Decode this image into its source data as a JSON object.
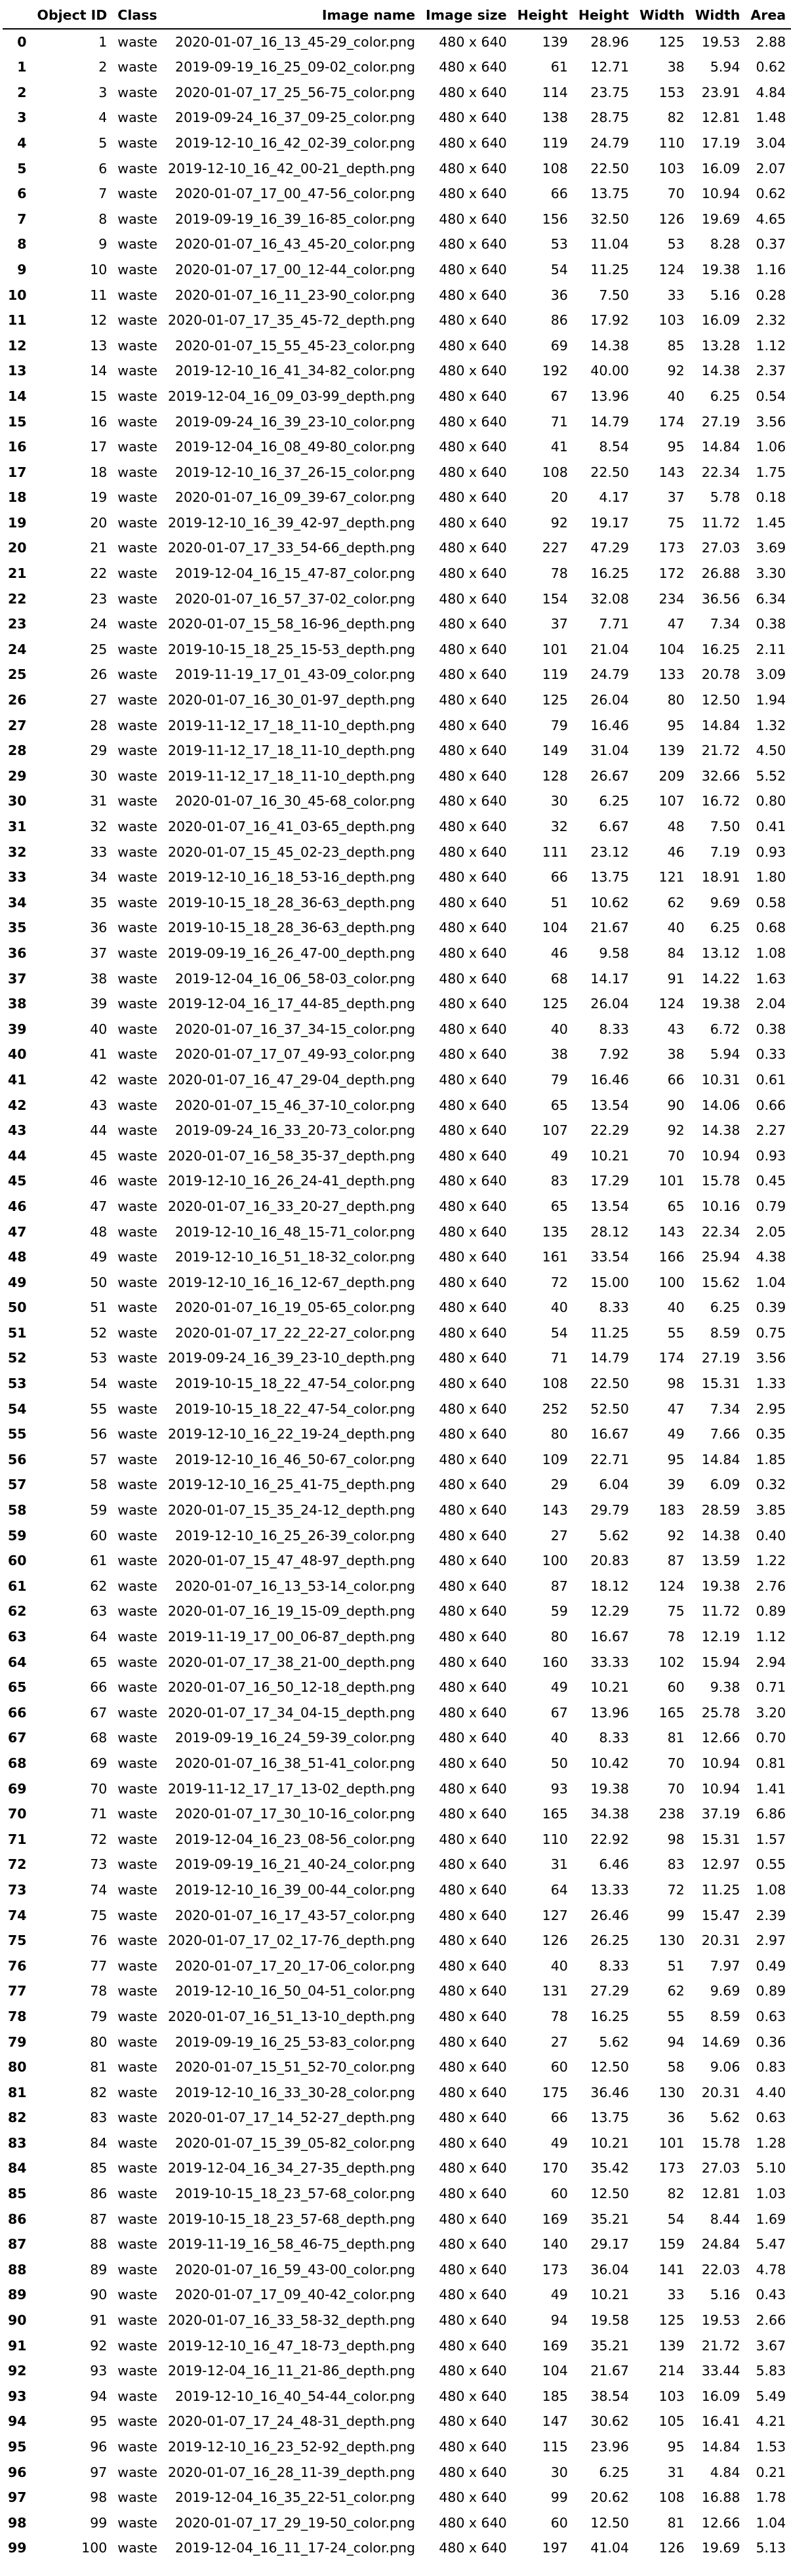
{
  "columns": [
    "",
    "Object ID",
    "Class",
    "Image name",
    "Image size",
    "Height",
    "Height",
    "Width",
    "Width",
    "Area"
  ],
  "rows": [
    [
      "0",
      "1",
      "waste",
      "2020-01-07_16_13_45-29_color.png",
      "480 x 640",
      "139",
      "28.96",
      "125",
      "19.53",
      "2.88"
    ],
    [
      "1",
      "2",
      "waste",
      "2019-09-19_16_25_09-02_color.png",
      "480 x 640",
      "61",
      "12.71",
      "38",
      "5.94",
      "0.62"
    ],
    [
      "2",
      "3",
      "waste",
      "2020-01-07_17_25_56-75_color.png",
      "480 x 640",
      "114",
      "23.75",
      "153",
      "23.91",
      "4.84"
    ],
    [
      "3",
      "4",
      "waste",
      "2019-09-24_16_37_09-25_color.png",
      "480 x 640",
      "138",
      "28.75",
      "82",
      "12.81",
      "1.48"
    ],
    [
      "4",
      "5",
      "waste",
      "2019-12-10_16_42_02-39_color.png",
      "480 x 640",
      "119",
      "24.79",
      "110",
      "17.19",
      "3.04"
    ],
    [
      "5",
      "6",
      "waste",
      "2019-12-10_16_42_00-21_depth.png",
      "480 x 640",
      "108",
      "22.50",
      "103",
      "16.09",
      "2.07"
    ],
    [
      "6",
      "7",
      "waste",
      "2020-01-07_17_00_47-56_color.png",
      "480 x 640",
      "66",
      "13.75",
      "70",
      "10.94",
      "0.62"
    ],
    [
      "7",
      "8",
      "waste",
      "2019-09-19_16_39_16-85_color.png",
      "480 x 640",
      "156",
      "32.50",
      "126",
      "19.69",
      "4.65"
    ],
    [
      "8",
      "9",
      "waste",
      "2020-01-07_16_43_45-20_color.png",
      "480 x 640",
      "53",
      "11.04",
      "53",
      "8.28",
      "0.37"
    ],
    [
      "9",
      "10",
      "waste",
      "2020-01-07_17_00_12-44_color.png",
      "480 x 640",
      "54",
      "11.25",
      "124",
      "19.38",
      "1.16"
    ],
    [
      "10",
      "11",
      "waste",
      "2020-01-07_16_11_23-90_color.png",
      "480 x 640",
      "36",
      "7.50",
      "33",
      "5.16",
      "0.28"
    ],
    [
      "11",
      "12",
      "waste",
      "2020-01-07_17_35_45-72_depth.png",
      "480 x 640",
      "86",
      "17.92",
      "103",
      "16.09",
      "2.32"
    ],
    [
      "12",
      "13",
      "waste",
      "2020-01-07_15_55_45-23_color.png",
      "480 x 640",
      "69",
      "14.38",
      "85",
      "13.28",
      "1.12"
    ],
    [
      "13",
      "14",
      "waste",
      "2019-12-10_16_41_34-82_color.png",
      "480 x 640",
      "192",
      "40.00",
      "92",
      "14.38",
      "2.37"
    ],
    [
      "14",
      "15",
      "waste",
      "2019-12-04_16_09_03-99_depth.png",
      "480 x 640",
      "67",
      "13.96",
      "40",
      "6.25",
      "0.54"
    ],
    [
      "15",
      "16",
      "waste",
      "2019-09-24_16_39_23-10_color.png",
      "480 x 640",
      "71",
      "14.79",
      "174",
      "27.19",
      "3.56"
    ],
    [
      "16",
      "17",
      "waste",
      "2019-12-04_16_08_49-80_color.png",
      "480 x 640",
      "41",
      "8.54",
      "95",
      "14.84",
      "1.06"
    ],
    [
      "17",
      "18",
      "waste",
      "2019-12-10_16_37_26-15_color.png",
      "480 x 640",
      "108",
      "22.50",
      "143",
      "22.34",
      "1.75"
    ],
    [
      "18",
      "19",
      "waste",
      "2020-01-07_16_09_39-67_color.png",
      "480 x 640",
      "20",
      "4.17",
      "37",
      "5.78",
      "0.18"
    ],
    [
      "19",
      "20",
      "waste",
      "2019-12-10_16_39_42-97_depth.png",
      "480 x 640",
      "92",
      "19.17",
      "75",
      "11.72",
      "1.45"
    ],
    [
      "20",
      "21",
      "waste",
      "2020-01-07_17_33_54-66_depth.png",
      "480 x 640",
      "227",
      "47.29",
      "173",
      "27.03",
      "3.69"
    ],
    [
      "21",
      "22",
      "waste",
      "2019-12-04_16_15_47-87_color.png",
      "480 x 640",
      "78",
      "16.25",
      "172",
      "26.88",
      "3.30"
    ],
    [
      "22",
      "23",
      "waste",
      "2020-01-07_16_57_37-02_color.png",
      "480 x 640",
      "154",
      "32.08",
      "234",
      "36.56",
      "6.34"
    ],
    [
      "23",
      "24",
      "waste",
      "2020-01-07_15_58_16-96_depth.png",
      "480 x 640",
      "37",
      "7.71",
      "47",
      "7.34",
      "0.38"
    ],
    [
      "24",
      "25",
      "waste",
      "2019-10-15_18_25_15-53_depth.png",
      "480 x 640",
      "101",
      "21.04",
      "104",
      "16.25",
      "2.11"
    ],
    [
      "25",
      "26",
      "waste",
      "2019-11-19_17_01_43-09_color.png",
      "480 x 640",
      "119",
      "24.79",
      "133",
      "20.78",
      "3.09"
    ],
    [
      "26",
      "27",
      "waste",
      "2020-01-07_16_30_01-97_depth.png",
      "480 x 640",
      "125",
      "26.04",
      "80",
      "12.50",
      "1.94"
    ],
    [
      "27",
      "28",
      "waste",
      "2019-11-12_17_18_11-10_depth.png",
      "480 x 640",
      "79",
      "16.46",
      "95",
      "14.84",
      "1.32"
    ],
    [
      "28",
      "29",
      "waste",
      "2019-11-12_17_18_11-10_depth.png",
      "480 x 640",
      "149",
      "31.04",
      "139",
      "21.72",
      "4.50"
    ],
    [
      "29",
      "30",
      "waste",
      "2019-11-12_17_18_11-10_depth.png",
      "480 x 640",
      "128",
      "26.67",
      "209",
      "32.66",
      "5.52"
    ],
    [
      "30",
      "31",
      "waste",
      "2020-01-07_16_30_45-68_color.png",
      "480 x 640",
      "30",
      "6.25",
      "107",
      "16.72",
      "0.80"
    ],
    [
      "31",
      "32",
      "waste",
      "2020-01-07_16_41_03-65_depth.png",
      "480 x 640",
      "32",
      "6.67",
      "48",
      "7.50",
      "0.41"
    ],
    [
      "32",
      "33",
      "waste",
      "2020-01-07_15_45_02-23_depth.png",
      "480 x 640",
      "111",
      "23.12",
      "46",
      "7.19",
      "0.93"
    ],
    [
      "33",
      "34",
      "waste",
      "2019-12-10_16_18_53-16_depth.png",
      "480 x 640",
      "66",
      "13.75",
      "121",
      "18.91",
      "1.80"
    ],
    [
      "34",
      "35",
      "waste",
      "2019-10-15_18_28_36-63_depth.png",
      "480 x 640",
      "51",
      "10.62",
      "62",
      "9.69",
      "0.58"
    ],
    [
      "35",
      "36",
      "waste",
      "2019-10-15_18_28_36-63_depth.png",
      "480 x 640",
      "104",
      "21.67",
      "40",
      "6.25",
      "0.68"
    ],
    [
      "36",
      "37",
      "waste",
      "2019-09-19_16_26_47-00_depth.png",
      "480 x 640",
      "46",
      "9.58",
      "84",
      "13.12",
      "1.08"
    ],
    [
      "37",
      "38",
      "waste",
      "2019-12-04_16_06_58-03_color.png",
      "480 x 640",
      "68",
      "14.17",
      "91",
      "14.22",
      "1.63"
    ],
    [
      "38",
      "39",
      "waste",
      "2019-12-04_16_17_44-85_depth.png",
      "480 x 640",
      "125",
      "26.04",
      "124",
      "19.38",
      "2.04"
    ],
    [
      "39",
      "40",
      "waste",
      "2020-01-07_16_37_34-15_color.png",
      "480 x 640",
      "40",
      "8.33",
      "43",
      "6.72",
      "0.38"
    ],
    [
      "40",
      "41",
      "waste",
      "2020-01-07_17_07_49-93_color.png",
      "480 x 640",
      "38",
      "7.92",
      "38",
      "5.94",
      "0.33"
    ],
    [
      "41",
      "42",
      "waste",
      "2020-01-07_16_47_29-04_depth.png",
      "480 x 640",
      "79",
      "16.46",
      "66",
      "10.31",
      "0.61"
    ],
    [
      "42",
      "43",
      "waste",
      "2020-01-07_15_46_37-10_color.png",
      "480 x 640",
      "65",
      "13.54",
      "90",
      "14.06",
      "0.66"
    ],
    [
      "43",
      "44",
      "waste",
      "2019-09-24_16_33_20-73_color.png",
      "480 x 640",
      "107",
      "22.29",
      "92",
      "14.38",
      "2.27"
    ],
    [
      "44",
      "45",
      "waste",
      "2020-01-07_16_58_35-37_depth.png",
      "480 x 640",
      "49",
      "10.21",
      "70",
      "10.94",
      "0.93"
    ],
    [
      "45",
      "46",
      "waste",
      "2019-12-10_16_26_24-41_depth.png",
      "480 x 640",
      "83",
      "17.29",
      "101",
      "15.78",
      "0.45"
    ],
    [
      "46",
      "47",
      "waste",
      "2020-01-07_16_33_20-27_depth.png",
      "480 x 640",
      "65",
      "13.54",
      "65",
      "10.16",
      "0.79"
    ],
    [
      "47",
      "48",
      "waste",
      "2019-12-10_16_48_15-71_color.png",
      "480 x 640",
      "135",
      "28.12",
      "143",
      "22.34",
      "2.05"
    ],
    [
      "48",
      "49",
      "waste",
      "2019-12-10_16_51_18-32_color.png",
      "480 x 640",
      "161",
      "33.54",
      "166",
      "25.94",
      "4.38"
    ],
    [
      "49",
      "50",
      "waste",
      "2019-12-10_16_16_12-67_depth.png",
      "480 x 640",
      "72",
      "15.00",
      "100",
      "15.62",
      "1.04"
    ],
    [
      "50",
      "51",
      "waste",
      "2020-01-07_16_19_05-65_color.png",
      "480 x 640",
      "40",
      "8.33",
      "40",
      "6.25",
      "0.39"
    ],
    [
      "51",
      "52",
      "waste",
      "2020-01-07_17_22_22-27_color.png",
      "480 x 640",
      "54",
      "11.25",
      "55",
      "8.59",
      "0.75"
    ],
    [
      "52",
      "53",
      "waste",
      "2019-09-24_16_39_23-10_depth.png",
      "480 x 640",
      "71",
      "14.79",
      "174",
      "27.19",
      "3.56"
    ],
    [
      "53",
      "54",
      "waste",
      "2019-10-15_18_22_47-54_color.png",
      "480 x 640",
      "108",
      "22.50",
      "98",
      "15.31",
      "1.33"
    ],
    [
      "54",
      "55",
      "waste",
      "2019-10-15_18_22_47-54_color.png",
      "480 x 640",
      "252",
      "52.50",
      "47",
      "7.34",
      "2.95"
    ],
    [
      "55",
      "56",
      "waste",
      "2019-12-10_16_22_19-24_depth.png",
      "480 x 640",
      "80",
      "16.67",
      "49",
      "7.66",
      "0.35"
    ],
    [
      "56",
      "57",
      "waste",
      "2019-12-10_16_46_50-67_color.png",
      "480 x 640",
      "109",
      "22.71",
      "95",
      "14.84",
      "1.85"
    ],
    [
      "57",
      "58",
      "waste",
      "2019-12-10_16_25_41-75_depth.png",
      "480 x 640",
      "29",
      "6.04",
      "39",
      "6.09",
      "0.32"
    ],
    [
      "58",
      "59",
      "waste",
      "2020-01-07_15_35_24-12_depth.png",
      "480 x 640",
      "143",
      "29.79",
      "183",
      "28.59",
      "3.85"
    ],
    [
      "59",
      "60",
      "waste",
      "2019-12-10_16_25_26-39_color.png",
      "480 x 640",
      "27",
      "5.62",
      "92",
      "14.38",
      "0.40"
    ],
    [
      "60",
      "61",
      "waste",
      "2020-01-07_15_47_48-97_depth.png",
      "480 x 640",
      "100",
      "20.83",
      "87",
      "13.59",
      "1.22"
    ],
    [
      "61",
      "62",
      "waste",
      "2020-01-07_16_13_53-14_color.png",
      "480 x 640",
      "87",
      "18.12",
      "124",
      "19.38",
      "2.76"
    ],
    [
      "62",
      "63",
      "waste",
      "2020-01-07_16_19_15-09_depth.png",
      "480 x 640",
      "59",
      "12.29",
      "75",
      "11.72",
      "0.89"
    ],
    [
      "63",
      "64",
      "waste",
      "2019-11-19_17_00_06-87_depth.png",
      "480 x 640",
      "80",
      "16.67",
      "78",
      "12.19",
      "1.12"
    ],
    [
      "64",
      "65",
      "waste",
      "2020-01-07_17_38_21-00_depth.png",
      "480 x 640",
      "160",
      "33.33",
      "102",
      "15.94",
      "2.94"
    ],
    [
      "65",
      "66",
      "waste",
      "2020-01-07_16_50_12-18_depth.png",
      "480 x 640",
      "49",
      "10.21",
      "60",
      "9.38",
      "0.71"
    ],
    [
      "66",
      "67",
      "waste",
      "2020-01-07_17_34_04-15_depth.png",
      "480 x 640",
      "67",
      "13.96",
      "165",
      "25.78",
      "3.20"
    ],
    [
      "67",
      "68",
      "waste",
      "2019-09-19_16_24_59-39_color.png",
      "480 x 640",
      "40",
      "8.33",
      "81",
      "12.66",
      "0.70"
    ],
    [
      "68",
      "69",
      "waste",
      "2020-01-07_16_38_51-41_color.png",
      "480 x 640",
      "50",
      "10.42",
      "70",
      "10.94",
      "0.81"
    ],
    [
      "69",
      "70",
      "waste",
      "2019-11-12_17_17_13-02_depth.png",
      "480 x 640",
      "93",
      "19.38",
      "70",
      "10.94",
      "1.41"
    ],
    [
      "70",
      "71",
      "waste",
      "2020-01-07_17_30_10-16_color.png",
      "480 x 640",
      "165",
      "34.38",
      "238",
      "37.19",
      "6.86"
    ],
    [
      "71",
      "72",
      "waste",
      "2019-12-04_16_23_08-56_color.png",
      "480 x 640",
      "110",
      "22.92",
      "98",
      "15.31",
      "1.57"
    ],
    [
      "72",
      "73",
      "waste",
      "2019-09-19_16_21_40-24_color.png",
      "480 x 640",
      "31",
      "6.46",
      "83",
      "12.97",
      "0.55"
    ],
    [
      "73",
      "74",
      "waste",
      "2019-12-10_16_39_00-44_color.png",
      "480 x 640",
      "64",
      "13.33",
      "72",
      "11.25",
      "1.08"
    ],
    [
      "74",
      "75",
      "waste",
      "2020-01-07_16_17_43-57_color.png",
      "480 x 640",
      "127",
      "26.46",
      "99",
      "15.47",
      "2.39"
    ],
    [
      "75",
      "76",
      "waste",
      "2020-01-07_17_02_17-76_depth.png",
      "480 x 640",
      "126",
      "26.25",
      "130",
      "20.31",
      "2.97"
    ],
    [
      "76",
      "77",
      "waste",
      "2020-01-07_17_20_17-06_color.png",
      "480 x 640",
      "40",
      "8.33",
      "51",
      "7.97",
      "0.49"
    ],
    [
      "77",
      "78",
      "waste",
      "2019-12-10_16_50_04-51_color.png",
      "480 x 640",
      "131",
      "27.29",
      "62",
      "9.69",
      "0.89"
    ],
    [
      "78",
      "79",
      "waste",
      "2020-01-07_16_51_13-10_depth.png",
      "480 x 640",
      "78",
      "16.25",
      "55",
      "8.59",
      "0.63"
    ],
    [
      "79",
      "80",
      "waste",
      "2019-09-19_16_25_53-83_color.png",
      "480 x 640",
      "27",
      "5.62",
      "94",
      "14.69",
      "0.36"
    ],
    [
      "80",
      "81",
      "waste",
      "2020-01-07_15_51_52-70_color.png",
      "480 x 640",
      "60",
      "12.50",
      "58",
      "9.06",
      "0.83"
    ],
    [
      "81",
      "82",
      "waste",
      "2019-12-10_16_33_30-28_color.png",
      "480 x 640",
      "175",
      "36.46",
      "130",
      "20.31",
      "4.40"
    ],
    [
      "82",
      "83",
      "waste",
      "2020-01-07_17_14_52-27_depth.png",
      "480 x 640",
      "66",
      "13.75",
      "36",
      "5.62",
      "0.63"
    ],
    [
      "83",
      "84",
      "waste",
      "2020-01-07_15_39_05-82_color.png",
      "480 x 640",
      "49",
      "10.21",
      "101",
      "15.78",
      "1.28"
    ],
    [
      "84",
      "85",
      "waste",
      "2019-12-04_16_34_27-35_depth.png",
      "480 x 640",
      "170",
      "35.42",
      "173",
      "27.03",
      "5.10"
    ],
    [
      "85",
      "86",
      "waste",
      "2019-10-15_18_23_57-68_color.png",
      "480 x 640",
      "60",
      "12.50",
      "82",
      "12.81",
      "1.03"
    ],
    [
      "86",
      "87",
      "waste",
      "2019-10-15_18_23_57-68_depth.png",
      "480 x 640",
      "169",
      "35.21",
      "54",
      "8.44",
      "1.69"
    ],
    [
      "87",
      "88",
      "waste",
      "2019-11-19_16_58_46-75_depth.png",
      "480 x 640",
      "140",
      "29.17",
      "159",
      "24.84",
      "5.47"
    ],
    [
      "88",
      "89",
      "waste",
      "2020-01-07_16_59_43-00_color.png",
      "480 x 640",
      "173",
      "36.04",
      "141",
      "22.03",
      "4.78"
    ],
    [
      "89",
      "90",
      "waste",
      "2020-01-07_17_09_40-42_color.png",
      "480 x 640",
      "49",
      "10.21",
      "33",
      "5.16",
      "0.43"
    ],
    [
      "90",
      "91",
      "waste",
      "2020-01-07_16_33_58-32_depth.png",
      "480 x 640",
      "94",
      "19.58",
      "125",
      "19.53",
      "2.66"
    ],
    [
      "91",
      "92",
      "waste",
      "2019-12-10_16_47_18-73_depth.png",
      "480 x 640",
      "169",
      "35.21",
      "139",
      "21.72",
      "3.67"
    ],
    [
      "92",
      "93",
      "waste",
      "2019-12-04_16_11_21-86_depth.png",
      "480 x 640",
      "104",
      "21.67",
      "214",
      "33.44",
      "5.83"
    ],
    [
      "93",
      "94",
      "waste",
      "2019-12-10_16_40_54-44_color.png",
      "480 x 640",
      "185",
      "38.54",
      "103",
      "16.09",
      "5.49"
    ],
    [
      "94",
      "95",
      "waste",
      "2020-01-07_17_24_48-31_depth.png",
      "480 x 640",
      "147",
      "30.62",
      "105",
      "16.41",
      "4.21"
    ],
    [
      "95",
      "96",
      "waste",
      "2019-12-10_16_23_52-92_depth.png",
      "480 x 640",
      "115",
      "23.96",
      "95",
      "14.84",
      "1.53"
    ],
    [
      "96",
      "97",
      "waste",
      "2020-01-07_16_28_11-39_depth.png",
      "480 x 640",
      "30",
      "6.25",
      "31",
      "4.84",
      "0.21"
    ],
    [
      "97",
      "98",
      "waste",
      "2019-12-04_16_35_22-51_color.png",
      "480 x 640",
      "99",
      "20.62",
      "108",
      "16.88",
      "1.78"
    ],
    [
      "98",
      "99",
      "waste",
      "2020-01-07_17_29_19-50_color.png",
      "480 x 640",
      "60",
      "12.50",
      "81",
      "12.66",
      "1.04"
    ],
    [
      "99",
      "100",
      "waste",
      "2019-12-04_16_11_17-24_color.png",
      "480 x 640",
      "197",
      "41.04",
      "126",
      "19.69",
      "5.13"
    ]
  ]
}
